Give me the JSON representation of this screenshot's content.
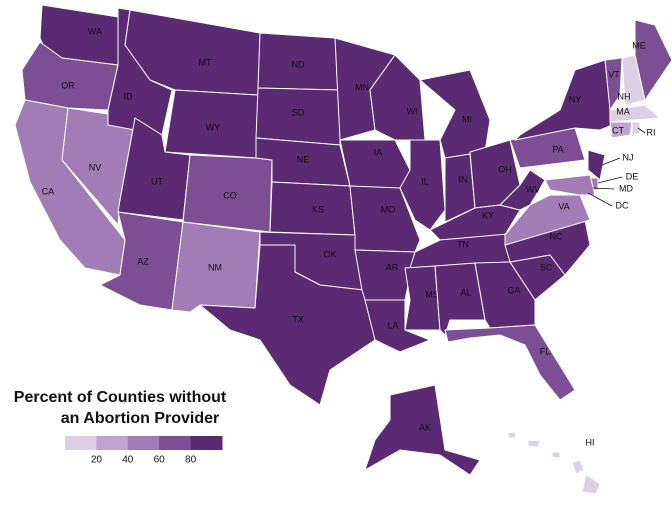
{
  "legend": {
    "title_lines": [
      "Percent of Counties without",
      "an Abortion Provider"
    ],
    "ticks": [
      20,
      40,
      60,
      80
    ],
    "range": [
      0,
      100
    ],
    "colors": [
      "#ddcfe6",
      "#c0a3cf",
      "#a17cb6",
      "#7c4f95",
      "#5a2a72"
    ]
  },
  "states": [
    {
      "label": "WA",
      "color": "#5a2a72"
    },
    {
      "label": "OR",
      "color": "#7c4f95"
    },
    {
      "label": "CA",
      "color": "#a17cb6"
    },
    {
      "label": "NV",
      "color": "#a17cb6"
    },
    {
      "label": "ID",
      "color": "#5a2a72"
    },
    {
      "label": "MT",
      "color": "#5a2a72"
    },
    {
      "label": "WY",
      "color": "#5a2a72"
    },
    {
      "label": "UT",
      "color": "#5a2a72"
    },
    {
      "label": "CO",
      "color": "#7c4f95"
    },
    {
      "label": "AZ",
      "color": "#7c4f95"
    },
    {
      "label": "NM",
      "color": "#a17cb6"
    },
    {
      "label": "ND",
      "color": "#5a2a72"
    },
    {
      "label": "SD",
      "color": "#5a2a72"
    },
    {
      "label": "NE",
      "color": "#5a2a72"
    },
    {
      "label": "KS",
      "color": "#5a2a72"
    },
    {
      "label": "OK",
      "color": "#5a2a72"
    },
    {
      "label": "TX",
      "color": "#5a2a72"
    },
    {
      "label": "MN",
      "color": "#5a2a72"
    },
    {
      "label": "IA",
      "color": "#5a2a72"
    },
    {
      "label": "MO",
      "color": "#5a2a72"
    },
    {
      "label": "AR",
      "color": "#5a2a72"
    },
    {
      "label": "LA",
      "color": "#5a2a72"
    },
    {
      "label": "WI",
      "color": "#5a2a72"
    },
    {
      "label": "IL",
      "color": "#5a2a72"
    },
    {
      "label": "MI",
      "color": "#5a2a72"
    },
    {
      "label": "IN",
      "color": "#5a2a72"
    },
    {
      "label": "OH",
      "color": "#5a2a72"
    },
    {
      "label": "KY",
      "color": "#5a2a72"
    },
    {
      "label": "TN",
      "color": "#5a2a72"
    },
    {
      "label": "MS",
      "color": "#5a2a72"
    },
    {
      "label": "AL",
      "color": "#5a2a72"
    },
    {
      "label": "GA",
      "color": "#5a2a72"
    },
    {
      "label": "FL",
      "color": "#7c4f95"
    },
    {
      "label": "SC",
      "color": "#5a2a72"
    },
    {
      "label": "NC",
      "color": "#5a2a72"
    },
    {
      "label": "VA",
      "color": "#a17cb6"
    },
    {
      "label": "WV",
      "color": "#5a2a72"
    },
    {
      "label": "PA",
      "color": "#7c4f95"
    },
    {
      "label": "NY",
      "color": "#5a2a72"
    },
    {
      "label": "NJ",
      "color": "#5a2a72"
    },
    {
      "label": "DE",
      "color": "#a17cb6"
    },
    {
      "label": "MD",
      "color": "#a17cb6"
    },
    {
      "label": "DC",
      "color": "#c0a3cf"
    },
    {
      "label": "VT",
      "color": "#7c4f95"
    },
    {
      "label": "NH",
      "color": "#ddcfe6"
    },
    {
      "label": "MA",
      "color": "#ddcfe6"
    },
    {
      "label": "CT",
      "color": "#c0a3cf"
    },
    {
      "label": "RI",
      "color": "#ddcfe6"
    },
    {
      "label": "ME",
      "color": "#7c4f95"
    },
    {
      "label": "AK",
      "color": "#5a2a72"
    },
    {
      "label": "HI",
      "color": "#ddcfe6"
    }
  ]
}
